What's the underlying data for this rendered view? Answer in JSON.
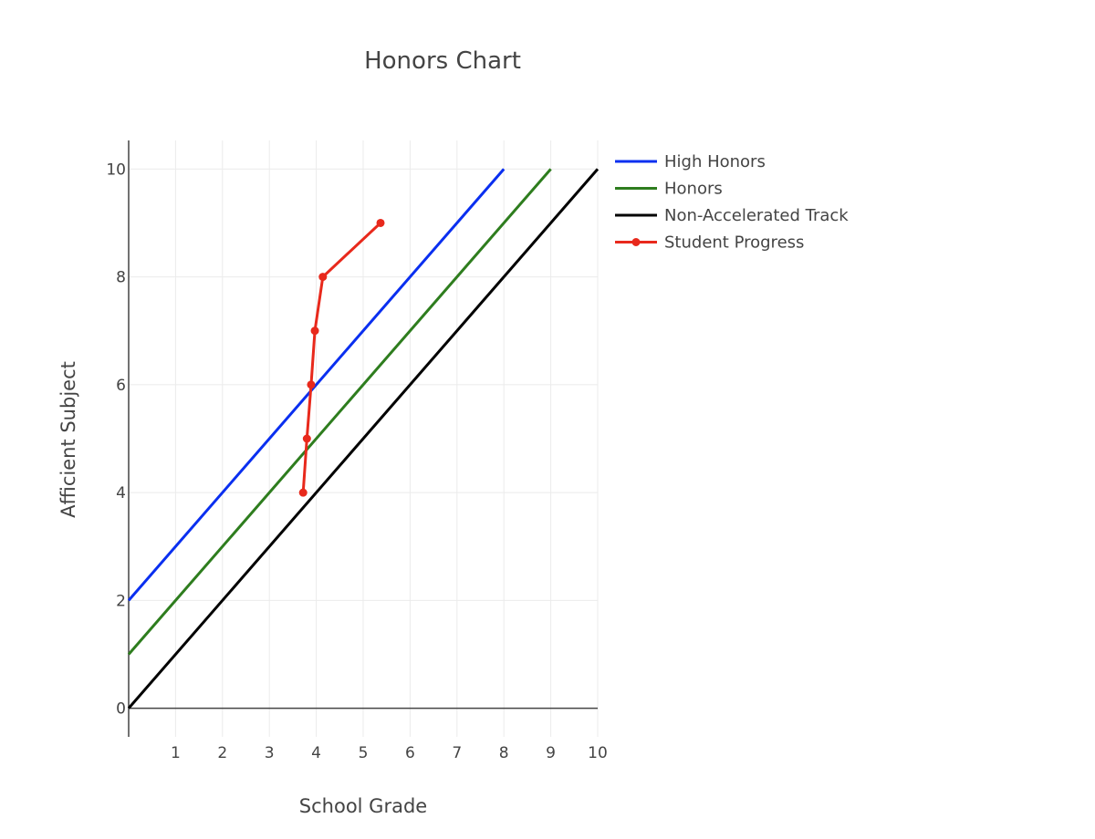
{
  "chart_data": {
    "type": "line",
    "title": "Honors Chart",
    "xlabel": "School Grade",
    "ylabel": "Afficient Subject",
    "xlim": [
      0,
      10
    ],
    "ylim": [
      -0.53,
      10.53
    ],
    "xticks": [
      1,
      2,
      3,
      4,
      5,
      6,
      7,
      8,
      9,
      10
    ],
    "yticks": [
      0,
      2,
      4,
      6,
      8,
      10
    ],
    "grid": true,
    "legend_position": "right-top",
    "series": [
      {
        "name": "High Honors",
        "color": "#0a2ff0",
        "mode": "lines",
        "x": [
          0,
          8
        ],
        "y": [
          2,
          10
        ]
      },
      {
        "name": "Honors",
        "color": "#2e7d1e",
        "mode": "lines",
        "x": [
          0,
          9
        ],
        "y": [
          1,
          10
        ]
      },
      {
        "name": "Non-Accelerated Track",
        "color": "#000000",
        "mode": "lines",
        "x": [
          0,
          10
        ],
        "y": [
          0,
          10
        ]
      },
      {
        "name": "Student Progress",
        "color": "#e8291c",
        "mode": "lines+markers",
        "x": [
          3.72,
          3.8,
          3.89,
          3.97,
          4.14,
          5.37
        ],
        "y": [
          4,
          5,
          6,
          7,
          8,
          9
        ]
      }
    ]
  }
}
